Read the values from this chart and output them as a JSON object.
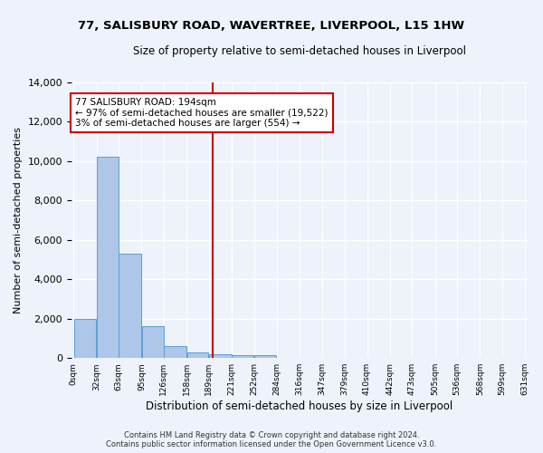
{
  "title": "77, SALISBURY ROAD, WAVERTREE, LIVERPOOL, L15 1HW",
  "subtitle": "Size of property relative to semi-detached houses in Liverpool",
  "xlabel": "Distribution of semi-detached houses by size in Liverpool",
  "ylabel": "Number of semi-detached properties",
  "bar_color": "#aec6e8",
  "bar_edge_color": "#5a9fd4",
  "vline_x": 194,
  "vline_color": "#cc0000",
  "annotation_text": "77 SALISBURY ROAD: 194sqm\n← 97% of semi-detached houses are smaller (19,522)\n3% of semi-detached houses are larger (554) →",
  "bin_edges": [
    0,
    32,
    63,
    95,
    126,
    158,
    189,
    221,
    252,
    284,
    316,
    347,
    379,
    410,
    442,
    473,
    505,
    536,
    568,
    599,
    631
  ],
  "bin_labels": [
    "0sqm",
    "32sqm",
    "63sqm",
    "95sqm",
    "126sqm",
    "158sqm",
    "189sqm",
    "221sqm",
    "252sqm",
    "284sqm",
    "316sqm",
    "347sqm",
    "379sqm",
    "410sqm",
    "442sqm",
    "473sqm",
    "505sqm",
    "536sqm",
    "568sqm",
    "599sqm",
    "631sqm"
  ],
  "bar_heights": [
    2000,
    10200,
    5300,
    1600,
    600,
    280,
    190,
    155,
    125,
    0,
    0,
    0,
    0,
    0,
    0,
    0,
    0,
    0,
    0,
    0
  ],
  "ylim": [
    0,
    14000
  ],
  "yticks": [
    0,
    2000,
    4000,
    6000,
    8000,
    10000,
    12000,
    14000
  ],
  "footer_line1": "Contains HM Land Registry data © Crown copyright and database right 2024.",
  "footer_line2": "Contains public sector information licensed under the Open Government Licence v3.0.",
  "background_color": "#eef2fb",
  "grid_color": "#ffffff",
  "annotation_box_color": "#ffffff",
  "annotation_box_edge": "#cc0000"
}
